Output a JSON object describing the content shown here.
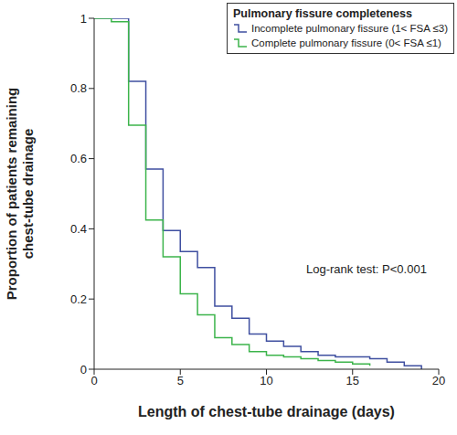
{
  "chart_data": {
    "type": "line",
    "x_label": "Length of chest-tube drainage (days)",
    "y_label": "Proportion of patients remaining chest-tube drainage",
    "legend_title": "Pulmonary fissure completeness",
    "legend": "upper right",
    "line_style": "step",
    "grid": false,
    "annotations": [
      "Log-rank test: P<0.001"
    ],
    "x": [
      0,
      1,
      2,
      3,
      4,
      5,
      6,
      7,
      8,
      9,
      10,
      11,
      12,
      13,
      14,
      15,
      16,
      17,
      18,
      19
    ],
    "xlim": [
      0,
      20
    ],
    "xticks": [
      0,
      5,
      10,
      15,
      20
    ],
    "ylim": [
      0,
      1
    ],
    "yticks": [
      0,
      0.2,
      0.4,
      0.6,
      0.8,
      1
    ],
    "series": [
      {
        "name": "Incomplete pulmonary fissure (1< FSA ≤3)",
        "color": "#3f4fa0",
        "values": [
          1,
          1,
          0.82,
          0.57,
          0.395,
          0.335,
          0.29,
          0.18,
          0.145,
          0.1,
          0.08,
          0.065,
          0.05,
          0.04,
          0.035,
          0.035,
          0.03,
          0.02,
          0.01,
          0
        ]
      },
      {
        "name": "Complete pulmonary fissure (0< FSA ≤1)",
        "color": "#3cb44b",
        "values": [
          1,
          0.99,
          0.695,
          0.425,
          0.32,
          0.215,
          0.155,
          0.09,
          0.07,
          0.05,
          0.04,
          0.035,
          0.03,
          0.025,
          0.02,
          0.015,
          0.01,
          null,
          null,
          null
        ]
      }
    ]
  }
}
